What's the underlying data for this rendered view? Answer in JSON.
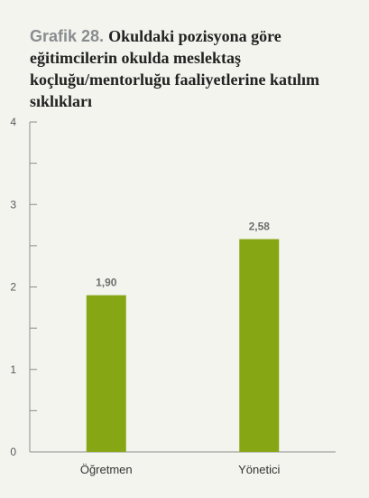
{
  "figure": {
    "label": "Grafik 28.",
    "title": "Okuldaki pozisyona göre eğitimcilerin okulda meslektaş koçluğu/mentorluğu faaliyetlerine katılım sıklıkları"
  },
  "colors": {
    "bar": "#87a614",
    "axis": "#8c8c8c",
    "background": "#f3f4ee",
    "label_text": "#6e6e6e"
  },
  "chart_data": {
    "type": "bar",
    "categories": [
      "Öğretmen",
      "Yönetici"
    ],
    "values": [
      1.9,
      2.58
    ],
    "value_labels": [
      "1,90",
      "2,58"
    ],
    "yticks": [
      0,
      1,
      2,
      3,
      4
    ],
    "ylim": [
      0,
      4
    ],
    "grid": false,
    "minor_ticks": true
  }
}
